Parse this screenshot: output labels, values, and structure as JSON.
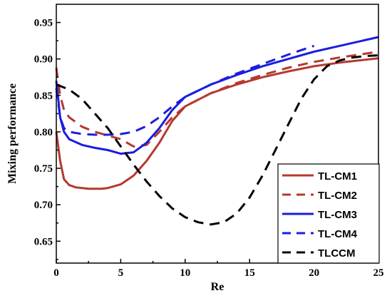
{
  "chart_data": {
    "type": "line",
    "xlabel": "Re",
    "ylabel": "Mixing performance",
    "xlim": [
      0,
      25
    ],
    "ylim": [
      0.62,
      0.975
    ],
    "x_ticks": [
      0,
      5,
      10,
      15,
      20,
      25
    ],
    "x_tick_labels": [
      "0",
      "5",
      "10",
      "15",
      "20",
      "25"
    ],
    "y_ticks": [
      0.65,
      0.7,
      0.75,
      0.8,
      0.85,
      0.9,
      0.95
    ],
    "y_tick_labels": [
      "0.65",
      "0.70",
      "0.75",
      "0.80",
      "0.85",
      "0.90",
      "0.95"
    ],
    "grid": false,
    "legend_position": "bottom-right",
    "series": [
      {
        "name": "TL-CM1",
        "color": "#b5392e",
        "style": "solid",
        "x": [
          0,
          0.3,
          0.6,
          1,
          1.5,
          2,
          2.5,
          3,
          3.5,
          4,
          5,
          6,
          7,
          8,
          9,
          10,
          12,
          14,
          16,
          18,
          20,
          22,
          25
        ],
        "y": [
          0.8,
          0.76,
          0.735,
          0.727,
          0.724,
          0.723,
          0.722,
          0.722,
          0.722,
          0.723,
          0.728,
          0.74,
          0.76,
          0.785,
          0.815,
          0.835,
          0.853,
          0.865,
          0.875,
          0.883,
          0.89,
          0.895,
          0.901
        ]
      },
      {
        "name": "TL-CM2",
        "color": "#b5392e",
        "style": "dashed",
        "x": [
          0,
          0.3,
          0.6,
          1,
          2,
          3,
          4,
          5,
          6,
          7,
          8,
          9,
          10,
          12,
          14,
          16,
          18,
          20,
          22,
          25
        ],
        "y": [
          0.888,
          0.85,
          0.83,
          0.82,
          0.807,
          0.8,
          0.795,
          0.79,
          0.78,
          0.782,
          0.8,
          0.82,
          0.835,
          0.853,
          0.867,
          0.878,
          0.888,
          0.896,
          0.902,
          0.91
        ]
      },
      {
        "name": "TL-CM3",
        "color": "#1c1ce0",
        "style": "solid",
        "x": [
          0,
          0.3,
          0.6,
          1,
          2,
          3,
          4,
          5,
          6,
          7,
          8,
          9,
          10,
          12,
          14,
          16,
          18,
          20,
          22,
          25
        ],
        "y": [
          0.87,
          0.82,
          0.8,
          0.79,
          0.782,
          0.778,
          0.775,
          0.77,
          0.772,
          0.785,
          0.805,
          0.83,
          0.848,
          0.865,
          0.878,
          0.89,
          0.9,
          0.91,
          0.918,
          0.93
        ]
      },
      {
        "name": "TL-CM4",
        "color": "#1c1ce0",
        "style": "dashed",
        "x": [
          0,
          0.3,
          0.6,
          1,
          2,
          3,
          4,
          5,
          6,
          7,
          8,
          9,
          10,
          12,
          14,
          16,
          18,
          20
        ],
        "y": [
          0.86,
          0.82,
          0.805,
          0.8,
          0.797,
          0.796,
          0.796,
          0.797,
          0.8,
          0.808,
          0.82,
          0.835,
          0.848,
          0.865,
          0.88,
          0.893,
          0.906,
          0.918
        ]
      },
      {
        "name": "TLCCM",
        "color": "#000000",
        "style": "dashed",
        "x": [
          0,
          1,
          2,
          3,
          4,
          5,
          6,
          7,
          8,
          9,
          10,
          11,
          12,
          13,
          14,
          15,
          16,
          17,
          18,
          19,
          20,
          21,
          22,
          23,
          24,
          25
        ],
        "y": [
          0.865,
          0.858,
          0.845,
          0.825,
          0.805,
          0.78,
          0.755,
          0.732,
          0.712,
          0.695,
          0.683,
          0.676,
          0.673,
          0.676,
          0.688,
          0.71,
          0.74,
          0.775,
          0.81,
          0.845,
          0.872,
          0.89,
          0.898,
          0.902,
          0.904,
          0.905
        ]
      }
    ]
  }
}
